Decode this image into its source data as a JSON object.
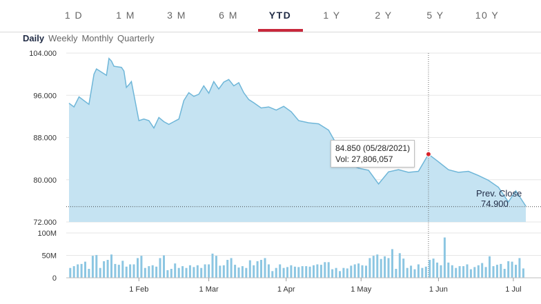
{
  "ranges": {
    "items": [
      "1 D",
      "1 M",
      "3 M",
      "6 M",
      "YTD",
      "1 Y",
      "2 Y",
      "5 Y",
      "10 Y"
    ],
    "active_index": 4
  },
  "periods": {
    "items": [
      "Daily",
      "Weekly",
      "Monthly",
      "Quarterly"
    ],
    "active_index": 0
  },
  "tooltip": {
    "price_line": "84.850 (05/28/2021)",
    "volume_line": "Vol: 27,806,057"
  },
  "prev_close": {
    "label": "Prev. Close",
    "value": "74.900"
  },
  "colors": {
    "area_fill": "#c5e3f2",
    "line": "#6eb6d8",
    "volume_bar": "#8cc6e2",
    "marker": "#d8232a",
    "active_tab": "#c8283c"
  },
  "chart_data": [
    {
      "type": "area",
      "title": "",
      "xlabel": "",
      "ylabel": "",
      "ylim": [
        72,
        104
      ],
      "y_ticks": [
        "104.000",
        "96.000",
        "88.000",
        "80.000",
        "72.000"
      ],
      "x_ticks": [
        "1 Feb",
        "1 Mar",
        "1 Apr",
        "1 May",
        "1 Jun",
        "1 Jul"
      ],
      "x_tick_dates": [
        "2021-02-01",
        "2021-03-01",
        "2021-04-01",
        "2021-05-01",
        "2021-06-01",
        "2021-07-01"
      ],
      "x_range": [
        "2021-01-04",
        "2021-07-06"
      ],
      "prev_close": 74.9,
      "highlight": {
        "date": "2021-05-28",
        "value": 84.85
      },
      "series": [
        {
          "dates": [
            "2021-01-04",
            "2021-01-06",
            "2021-01-08",
            "2021-01-12",
            "2021-01-14",
            "2021-01-15",
            "2021-01-19",
            "2021-01-20",
            "2021-01-21",
            "2021-01-22",
            "2021-01-25",
            "2021-01-26",
            "2021-01-27",
            "2021-01-28",
            "2021-01-29",
            "2021-02-01",
            "2021-02-03",
            "2021-02-05",
            "2021-02-07",
            "2021-02-09",
            "2021-02-11",
            "2021-02-13",
            "2021-02-15",
            "2021-02-17",
            "2021-02-19",
            "2021-02-21",
            "2021-02-23",
            "2021-02-25",
            "2021-02-27",
            "2021-03-01",
            "2021-03-03",
            "2021-03-05",
            "2021-03-07",
            "2021-03-09",
            "2021-03-11",
            "2021-03-13",
            "2021-03-15",
            "2021-03-17",
            "2021-03-19",
            "2021-03-22",
            "2021-03-25",
            "2021-03-28",
            "2021-03-31",
            "2021-04-03",
            "2021-04-06",
            "2021-04-10",
            "2021-04-14",
            "2021-04-18",
            "2021-04-22",
            "2021-04-26",
            "2021-04-30",
            "2021-05-04",
            "2021-05-08",
            "2021-05-12",
            "2021-05-16",
            "2021-05-20",
            "2021-05-24",
            "2021-05-28",
            "2021-06-01",
            "2021-06-05",
            "2021-06-09",
            "2021-06-13",
            "2021-06-17",
            "2021-06-21",
            "2021-06-25",
            "2021-06-29",
            "2021-07-02",
            "2021-07-06"
          ],
          "values": [
            94.5,
            93.8,
            95.7,
            94.3,
            100.0,
            101.0,
            99.8,
            103.0,
            102.5,
            101.5,
            101.3,
            100.6,
            97.5,
            98.0,
            98.6,
            91.2,
            91.5,
            91.2,
            89.8,
            91.8,
            91.0,
            90.5,
            91.0,
            91.5,
            95.0,
            96.5,
            95.8,
            96.2,
            97.8,
            96.4,
            98.6,
            97.2,
            98.5,
            99.0,
            97.8,
            98.4,
            96.5,
            95.2,
            94.6,
            93.6,
            93.8,
            93.2,
            93.9,
            92.9,
            91.2,
            90.8,
            90.6,
            89.4,
            86.0,
            83.0,
            82.2,
            81.8,
            79.2,
            81.5,
            81.9,
            81.4,
            81.6,
            84.85,
            83.4,
            81.9,
            81.4,
            81.6,
            80.8,
            79.9,
            78.6,
            75.8,
            77.9,
            75.0
          ]
        }
      ]
    },
    {
      "type": "bar",
      "title": "",
      "xlabel": "",
      "ylabel": "",
      "ylim": [
        0,
        100
      ],
      "y_ticks": [
        "100M",
        "50M",
        "0"
      ],
      "volumes_millions": [
        22,
        26,
        30,
        31,
        36,
        20,
        49,
        51,
        22,
        37,
        40,
        52,
        31,
        29,
        38,
        25,
        30,
        30,
        44,
        49,
        22,
        26,
        28,
        25,
        44,
        50,
        17,
        20,
        32,
        22,
        26,
        22,
        28,
        24,
        28,
        22,
        30,
        30,
        54,
        49,
        27,
        28,
        40,
        44,
        29,
        23,
        26,
        22,
        39,
        28,
        37,
        40,
        44,
        30,
        15,
        22,
        30,
        22,
        24,
        28,
        25,
        24,
        26,
        26,
        25,
        28,
        30,
        29,
        35,
        35,
        19,
        22,
        15,
        22,
        21,
        27,
        30,
        32,
        28,
        27,
        44,
        49,
        52,
        42,
        48,
        44,
        64,
        20,
        55,
        43,
        22,
        27,
        19,
        30,
        22,
        25,
        40,
        43,
        34,
        28,
        90,
        34,
        28,
        22,
        26,
        26,
        30,
        19,
        24,
        28,
        33,
        24,
        48,
        26,
        29,
        31,
        20,
        37,
        36,
        29,
        44,
        21
      ]
    }
  ]
}
